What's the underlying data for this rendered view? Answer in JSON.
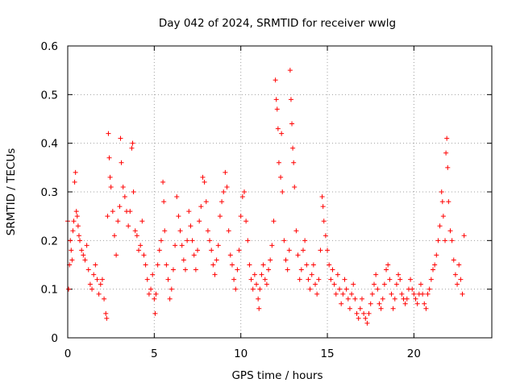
{
  "chart_data": {
    "type": "scatter",
    "title": "Day 042 of 2024, SRMTID for receiver wwlg",
    "xlabel": "GPS time / hours",
    "ylabel": "SRMTID / TECUs",
    "xlim": [
      0,
      24.5
    ],
    "ylim": [
      0,
      0.6
    ],
    "xticks": [
      0,
      5,
      10,
      15,
      20
    ],
    "xtick_labels": [
      "0",
      "5",
      "10",
      "15",
      "20"
    ],
    "yticks": [
      0,
      0.1,
      0.2,
      0.3,
      0.4,
      0.5,
      0.6
    ],
    "ytick_labels": [
      "0",
      "0.1",
      "0.2",
      "0.3",
      "0.4",
      "0.5",
      "0.6"
    ],
    "grid": true,
    "marker": "+",
    "marker_color": "#ff0000",
    "series": [
      {
        "name": "SRMTID",
        "points": [
          [
            0.0,
            0.24
          ],
          [
            0.05,
            0.1
          ],
          [
            0.1,
            0.15
          ],
          [
            0.15,
            0.2
          ],
          [
            0.2,
            0.18
          ],
          [
            0.25,
            0.16
          ],
          [
            0.3,
            0.22
          ],
          [
            0.35,
            0.24
          ],
          [
            0.4,
            0.32
          ],
          [
            0.45,
            0.34
          ],
          [
            0.5,
            0.26
          ],
          [
            0.55,
            0.25
          ],
          [
            0.6,
            0.23
          ],
          [
            0.65,
            0.21
          ],
          [
            0.7,
            0.2
          ],
          [
            0.8,
            0.18
          ],
          [
            0.9,
            0.17
          ],
          [
            1.0,
            0.16
          ],
          [
            1.1,
            0.19
          ],
          [
            1.2,
            0.14
          ],
          [
            1.3,
            0.11
          ],
          [
            1.4,
            0.1
          ],
          [
            1.5,
            0.13
          ],
          [
            1.6,
            0.15
          ],
          [
            1.7,
            0.12
          ],
          [
            1.8,
            0.09
          ],
          [
            1.9,
            0.11
          ],
          [
            2.0,
            0.12
          ],
          [
            2.1,
            0.08
          ],
          [
            2.2,
            0.05
          ],
          [
            2.25,
            0.04
          ],
          [
            2.3,
            0.25
          ],
          [
            2.35,
            0.42
          ],
          [
            2.4,
            0.37
          ],
          [
            2.45,
            0.33
          ],
          [
            2.5,
            0.31
          ],
          [
            2.6,
            0.26
          ],
          [
            2.7,
            0.21
          ],
          [
            2.8,
            0.17
          ],
          [
            2.9,
            0.24
          ],
          [
            3.0,
            0.27
          ],
          [
            3.05,
            0.41
          ],
          [
            3.1,
            0.36
          ],
          [
            3.2,
            0.31
          ],
          [
            3.3,
            0.29
          ],
          [
            3.4,
            0.26
          ],
          [
            3.5,
            0.23
          ],
          [
            3.6,
            0.26
          ],
          [
            3.7,
            0.39
          ],
          [
            3.75,
            0.4
          ],
          [
            3.8,
            0.3
          ],
          [
            3.9,
            0.22
          ],
          [
            4.0,
            0.21
          ],
          [
            4.1,
            0.18
          ],
          [
            4.2,
            0.19
          ],
          [
            4.3,
            0.24
          ],
          [
            4.4,
            0.17
          ],
          [
            4.5,
            0.15
          ],
          [
            4.6,
            0.12
          ],
          [
            4.7,
            0.09
          ],
          [
            4.8,
            0.1
          ],
          [
            4.9,
            0.13
          ],
          [
            5.0,
            0.08
          ],
          [
            5.05,
            0.05
          ],
          [
            5.1,
            0.09
          ],
          [
            5.2,
            0.15
          ],
          [
            5.3,
            0.18
          ],
          [
            5.4,
            0.2
          ],
          [
            5.5,
            0.32
          ],
          [
            5.55,
            0.28
          ],
          [
            5.6,
            0.22
          ],
          [
            5.7,
            0.15
          ],
          [
            5.8,
            0.12
          ],
          [
            5.9,
            0.08
          ],
          [
            6.0,
            0.1
          ],
          [
            6.1,
            0.14
          ],
          [
            6.2,
            0.19
          ],
          [
            6.3,
            0.29
          ],
          [
            6.4,
            0.25
          ],
          [
            6.5,
            0.22
          ],
          [
            6.6,
            0.19
          ],
          [
            6.7,
            0.16
          ],
          [
            6.8,
            0.14
          ],
          [
            6.9,
            0.2
          ],
          [
            7.0,
            0.26
          ],
          [
            7.1,
            0.23
          ],
          [
            7.2,
            0.2
          ],
          [
            7.3,
            0.17
          ],
          [
            7.4,
            0.14
          ],
          [
            7.5,
            0.18
          ],
          [
            7.6,
            0.24
          ],
          [
            7.7,
            0.27
          ],
          [
            7.8,
            0.33
          ],
          [
            7.9,
            0.32
          ],
          [
            8.0,
            0.28
          ],
          [
            8.1,
            0.22
          ],
          [
            8.2,
            0.2
          ],
          [
            8.3,
            0.18
          ],
          [
            8.4,
            0.15
          ],
          [
            8.5,
            0.13
          ],
          [
            8.6,
            0.16
          ],
          [
            8.7,
            0.19
          ],
          [
            8.8,
            0.25
          ],
          [
            8.9,
            0.28
          ],
          [
            9.0,
            0.3
          ],
          [
            9.1,
            0.34
          ],
          [
            9.2,
            0.31
          ],
          [
            9.3,
            0.22
          ],
          [
            9.4,
            0.17
          ],
          [
            9.5,
            0.15
          ],
          [
            9.6,
            0.12
          ],
          [
            9.7,
            0.1
          ],
          [
            9.8,
            0.14
          ],
          [
            9.9,
            0.18
          ],
          [
            10.0,
            0.25
          ],
          [
            10.1,
            0.29
          ],
          [
            10.2,
            0.3
          ],
          [
            10.3,
            0.24
          ],
          [
            10.4,
            0.2
          ],
          [
            10.5,
            0.15
          ],
          [
            10.6,
            0.12
          ],
          [
            10.7,
            0.1
          ],
          [
            10.8,
            0.13
          ],
          [
            10.9,
            0.11
          ],
          [
            11.0,
            0.08
          ],
          [
            11.05,
            0.06
          ],
          [
            11.1,
            0.1
          ],
          [
            11.2,
            0.13
          ],
          [
            11.3,
            0.15
          ],
          [
            11.4,
            0.12
          ],
          [
            11.5,
            0.11
          ],
          [
            11.6,
            0.14
          ],
          [
            11.7,
            0.16
          ],
          [
            11.8,
            0.19
          ],
          [
            11.9,
            0.24
          ],
          [
            12.0,
            0.53
          ],
          [
            12.05,
            0.49
          ],
          [
            12.1,
            0.47
          ],
          [
            12.15,
            0.43
          ],
          [
            12.2,
            0.36
          ],
          [
            12.3,
            0.33
          ],
          [
            12.35,
            0.42
          ],
          [
            12.4,
            0.3
          ],
          [
            12.5,
            0.2
          ],
          [
            12.6,
            0.16
          ],
          [
            12.7,
            0.14
          ],
          [
            12.8,
            0.18
          ],
          [
            12.85,
            0.55
          ],
          [
            12.9,
            0.49
          ],
          [
            12.95,
            0.44
          ],
          [
            13.0,
            0.39
          ],
          [
            13.05,
            0.36
          ],
          [
            13.1,
            0.31
          ],
          [
            13.2,
            0.22
          ],
          [
            13.3,
            0.17
          ],
          [
            13.4,
            0.12
          ],
          [
            13.5,
            0.14
          ],
          [
            13.6,
            0.18
          ],
          [
            13.7,
            0.2
          ],
          [
            13.8,
            0.15
          ],
          [
            13.9,
            0.12
          ],
          [
            14.0,
            0.1
          ],
          [
            14.1,
            0.13
          ],
          [
            14.2,
            0.15
          ],
          [
            14.3,
            0.11
          ],
          [
            14.4,
            0.09
          ],
          [
            14.5,
            0.12
          ],
          [
            14.6,
            0.18
          ],
          [
            14.7,
            0.29
          ],
          [
            14.75,
            0.27
          ],
          [
            14.8,
            0.24
          ],
          [
            14.9,
            0.21
          ],
          [
            15.0,
            0.18
          ],
          [
            15.1,
            0.15
          ],
          [
            15.2,
            0.12
          ],
          [
            15.3,
            0.14
          ],
          [
            15.4,
            0.11
          ],
          [
            15.5,
            0.09
          ],
          [
            15.6,
            0.13
          ],
          [
            15.7,
            0.1
          ],
          [
            15.8,
            0.07
          ],
          [
            15.9,
            0.09
          ],
          [
            16.0,
            0.12
          ],
          [
            16.1,
            0.1
          ],
          [
            16.2,
            0.08
          ],
          [
            16.3,
            0.06
          ],
          [
            16.4,
            0.09
          ],
          [
            16.5,
            0.11
          ],
          [
            16.6,
            0.08
          ],
          [
            16.7,
            0.05
          ],
          [
            16.8,
            0.04
          ],
          [
            16.9,
            0.06
          ],
          [
            17.0,
            0.08
          ],
          [
            17.1,
            0.05
          ],
          [
            17.2,
            0.04
          ],
          [
            17.3,
            0.03
          ],
          [
            17.4,
            0.05
          ],
          [
            17.5,
            0.07
          ],
          [
            17.6,
            0.09
          ],
          [
            17.7,
            0.11
          ],
          [
            17.8,
            0.13
          ],
          [
            17.9,
            0.1
          ],
          [
            18.0,
            0.07
          ],
          [
            18.1,
            0.06
          ],
          [
            18.2,
            0.08
          ],
          [
            18.3,
            0.11
          ],
          [
            18.4,
            0.14
          ],
          [
            18.5,
            0.15
          ],
          [
            18.6,
            0.12
          ],
          [
            18.7,
            0.09
          ],
          [
            18.8,
            0.06
          ],
          [
            18.9,
            0.08
          ],
          [
            19.0,
            0.11
          ],
          [
            19.1,
            0.13
          ],
          [
            19.2,
            0.12
          ],
          [
            19.3,
            0.09
          ],
          [
            19.4,
            0.08
          ],
          [
            19.5,
            0.07
          ],
          [
            19.6,
            0.08
          ],
          [
            19.7,
            0.1
          ],
          [
            19.8,
            0.12
          ],
          [
            19.9,
            0.1
          ],
          [
            20.0,
            0.09
          ],
          [
            20.1,
            0.08
          ],
          [
            20.2,
            0.07
          ],
          [
            20.3,
            0.09
          ],
          [
            20.4,
            0.11
          ],
          [
            20.5,
            0.09
          ],
          [
            20.6,
            0.07
          ],
          [
            20.7,
            0.06
          ],
          [
            20.8,
            0.09
          ],
          [
            20.9,
            0.1
          ],
          [
            21.0,
            0.12
          ],
          [
            21.1,
            0.14
          ],
          [
            21.2,
            0.15
          ],
          [
            21.3,
            0.17
          ],
          [
            21.4,
            0.2
          ],
          [
            21.5,
            0.23
          ],
          [
            21.6,
            0.3
          ],
          [
            21.65,
            0.28
          ],
          [
            21.7,
            0.25
          ],
          [
            21.8,
            0.2
          ],
          [
            21.85,
            0.38
          ],
          [
            21.9,
            0.41
          ],
          [
            21.95,
            0.35
          ],
          [
            22.0,
            0.28
          ],
          [
            22.1,
            0.22
          ],
          [
            22.2,
            0.2
          ],
          [
            22.3,
            0.16
          ],
          [
            22.4,
            0.13
          ],
          [
            22.5,
            0.11
          ],
          [
            22.6,
            0.15
          ],
          [
            22.7,
            0.12
          ],
          [
            22.8,
            0.09
          ],
          [
            22.9,
            0.21
          ]
        ]
      }
    ]
  }
}
